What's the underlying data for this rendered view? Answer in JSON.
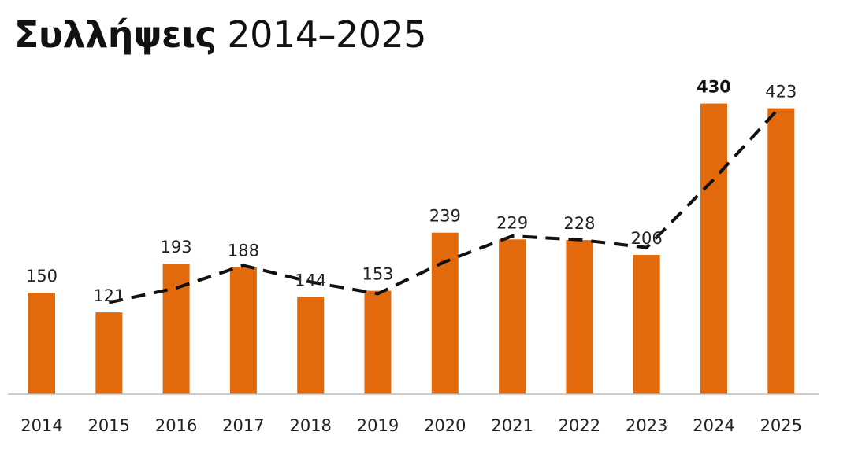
{
  "header": {
    "title_bold": "Συλλήψεις",
    "title_rest": "2014–2025"
  },
  "chart_data": {
    "type": "bar",
    "title": "Συλλήψεις 2014–2025",
    "xlabel": "",
    "ylabel": "",
    "categories": [
      "2014",
      "2015",
      "2016",
      "2017",
      "2018",
      "2019",
      "2020",
      "2021",
      "2022",
      "2023",
      "2024",
      "2025"
    ],
    "series": [
      {
        "type": "bar",
        "values": [
          150,
          121,
          193,
          188,
          144,
          153,
          239,
          229,
          228,
          206,
          430,
          423
        ],
        "color": "#E26A0C"
      },
      {
        "type": "line",
        "style": "dashed",
        "values": [
          null,
          135.5,
          157,
          190.5,
          166,
          148.5,
          196,
          234,
          228.5,
          217,
          318,
          426.5
        ],
        "color": "#111111"
      }
    ],
    "highlight_label": "2024",
    "ylim": [
      0,
      440
    ],
    "grid": false,
    "legend": "none"
  }
}
